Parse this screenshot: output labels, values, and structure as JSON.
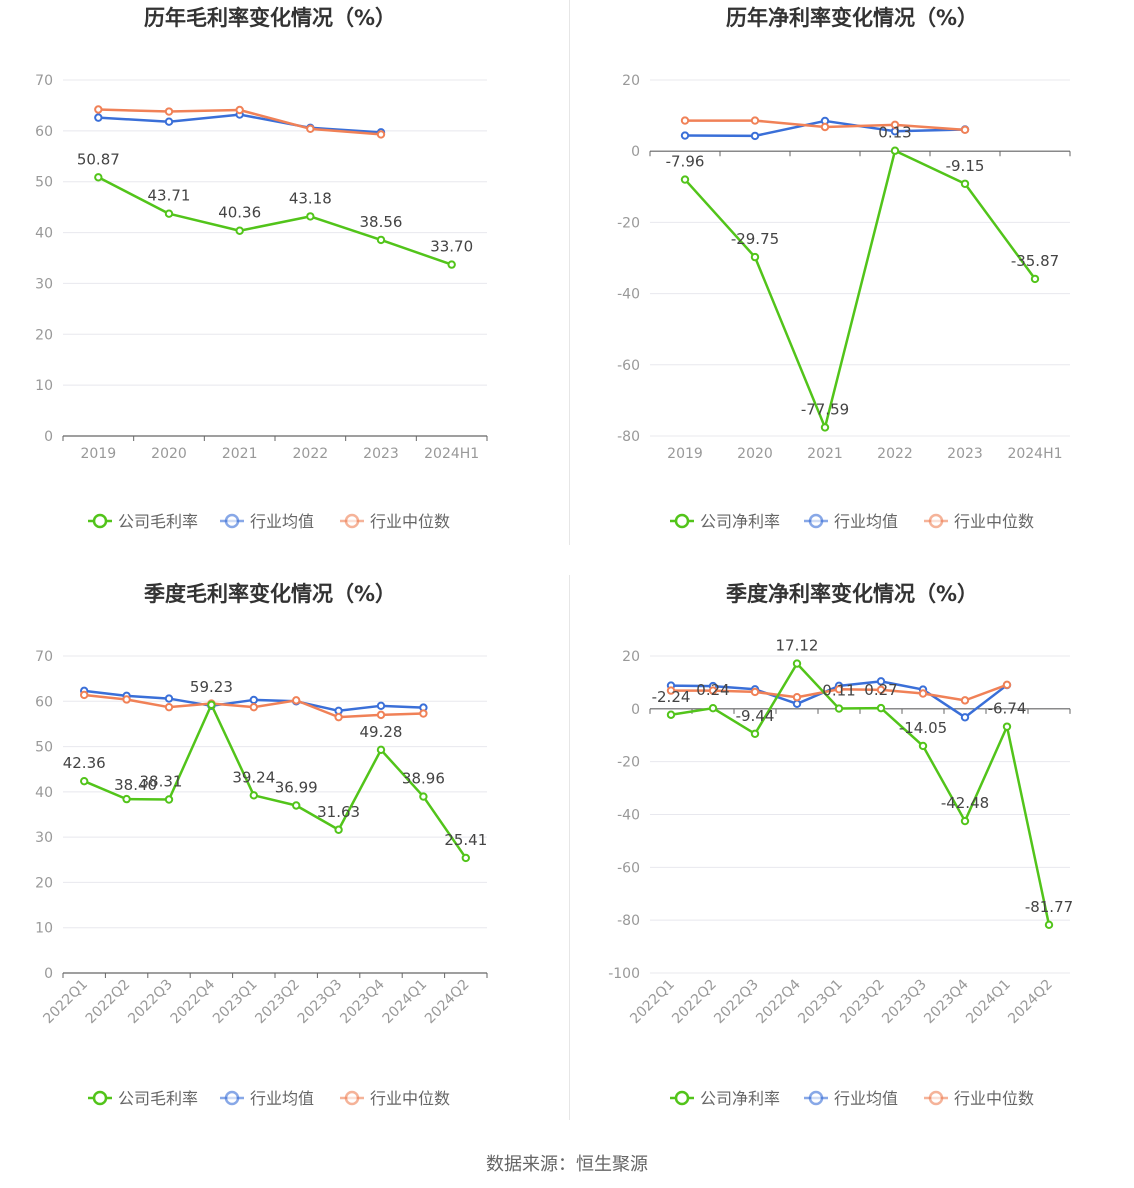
{
  "source_label": "数据来源：恒生聚源",
  "legend_labels": {
    "company_gross": "公司毛利率",
    "company_net": "公司净利率",
    "industry_avg": "行业均值",
    "industry_median": "行业中位数"
  },
  "colors": {
    "company": "#52c41a",
    "industry_avg": "#3a6fd8",
    "industry_median": "#f08157",
    "grid": "#e8e8ee",
    "axis": "#666666",
    "tick_text": "#999999",
    "label_text": "#444444",
    "title_text": "#333333"
  },
  "chart_data": [
    {
      "type": "line",
      "title": "历年毛利率变化情况（%）",
      "categories": [
        "2019",
        "2020",
        "2021",
        "2022",
        "2023",
        "2024H1"
      ],
      "ylim": [
        0,
        70
      ],
      "yticks": [
        0,
        10,
        20,
        30,
        40,
        50,
        60,
        70
      ],
      "grid": true,
      "legend": "bottom",
      "series": [
        {
          "name": "公司毛利率",
          "key": "company",
          "values": [
            50.87,
            43.71,
            40.36,
            43.18,
            38.56,
            33.7
          ],
          "labels": [
            "50.87",
            "43.71",
            "40.36",
            "43.18",
            "38.56",
            "33.70"
          ]
        },
        {
          "name": "行业均值",
          "key": "industry_avg",
          "values": [
            62.6,
            61.8,
            63.2,
            60.6,
            59.7,
            null
          ]
        },
        {
          "name": "行业中位数",
          "key": "industry_median",
          "values": [
            64.2,
            63.8,
            64.1,
            60.4,
            59.3,
            null
          ]
        }
      ]
    },
    {
      "type": "line",
      "title": "历年净利率变化情况（%）",
      "categories": [
        "2019",
        "2020",
        "2021",
        "2022",
        "2023",
        "2024H1"
      ],
      "ylim": [
        -80,
        20
      ],
      "yticks": [
        -80,
        -60,
        -40,
        -20,
        0,
        20
      ],
      "grid": true,
      "legend": "bottom",
      "series": [
        {
          "name": "公司净利率",
          "key": "company",
          "values": [
            -7.96,
            -29.75,
            -77.59,
            0.13,
            -9.15,
            -35.87
          ],
          "labels": [
            "-7.96",
            "-29.75",
            "-77.59",
            "0.13",
            "-9.15",
            "-35.87"
          ]
        },
        {
          "name": "行业均值",
          "key": "industry_avg",
          "values": [
            4.4,
            4.3,
            8.5,
            5.6,
            6.1,
            null
          ]
        },
        {
          "name": "行业中位数",
          "key": "industry_median",
          "values": [
            8.6,
            8.6,
            6.8,
            7.4,
            6.0,
            null
          ]
        }
      ]
    },
    {
      "type": "line",
      "title": "季度毛利率变化情况（%）",
      "categories": [
        "2022Q1",
        "2022Q2",
        "2022Q3",
        "2022Q4",
        "2023Q1",
        "2023Q2",
        "2023Q3",
        "2023Q4",
        "2024Q1",
        "2024Q2"
      ],
      "ylim": [
        0,
        70
      ],
      "yticks": [
        0,
        10,
        20,
        30,
        40,
        50,
        60,
        70
      ],
      "grid": true,
      "legend": "bottom",
      "series": [
        {
          "name": "公司毛利率",
          "key": "company",
          "values": [
            42.36,
            38.4,
            38.31,
            59.23,
            39.24,
            36.99,
            31.63,
            49.28,
            38.96,
            25.41
          ],
          "labels": [
            "42.36",
            "38.40",
            "38.31",
            "59.23",
            "39.24",
            "36.99",
            "31.63",
            "49.28",
            "38.96",
            "25.41"
          ]
        },
        {
          "name": "行业均值",
          "key": "industry_avg",
          "values": [
            62.3,
            61.2,
            60.6,
            59.0,
            60.3,
            60.0,
            57.9,
            59.0,
            58.6,
            null
          ]
        },
        {
          "name": "行业中位数",
          "key": "industry_median",
          "values": [
            61.4,
            60.4,
            58.7,
            59.5,
            58.7,
            60.2,
            56.5,
            57.0,
            57.3,
            null
          ]
        }
      ]
    },
    {
      "type": "line",
      "title": "季度净利率变化情况（%）",
      "categories": [
        "2022Q1",
        "2022Q2",
        "2022Q3",
        "2022Q4",
        "2023Q1",
        "2023Q2",
        "2023Q3",
        "2023Q4",
        "2024Q1",
        "2024Q2"
      ],
      "ylim": [
        -100,
        20
      ],
      "yticks": [
        -100,
        -80,
        -60,
        -40,
        -20,
        0,
        20
      ],
      "grid": true,
      "legend": "bottom",
      "series": [
        {
          "name": "公司净利率",
          "key": "company",
          "values": [
            -2.24,
            0.24,
            -9.44,
            17.12,
            0.11,
            0.27,
            -14.05,
            -42.48,
            -6.74,
            -81.77
          ],
          "labels": [
            "-2.24",
            "0.24",
            "-9.44",
            "17.12",
            "0.11",
            "0.27",
            "-14.05",
            "-42.48",
            "-6.74",
            "-81.77"
          ]
        },
        {
          "name": "行业均值",
          "key": "industry_avg",
          "values": [
            8.8,
            8.6,
            7.4,
            1.9,
            8.7,
            10.4,
            7.3,
            -3.2,
            9.0,
            null
          ]
        },
        {
          "name": "行业中位数",
          "key": "industry_median",
          "values": [
            6.9,
            6.9,
            6.4,
            4.4,
            7.4,
            7.2,
            5.8,
            3.2,
            9.1,
            null
          ]
        }
      ]
    }
  ]
}
